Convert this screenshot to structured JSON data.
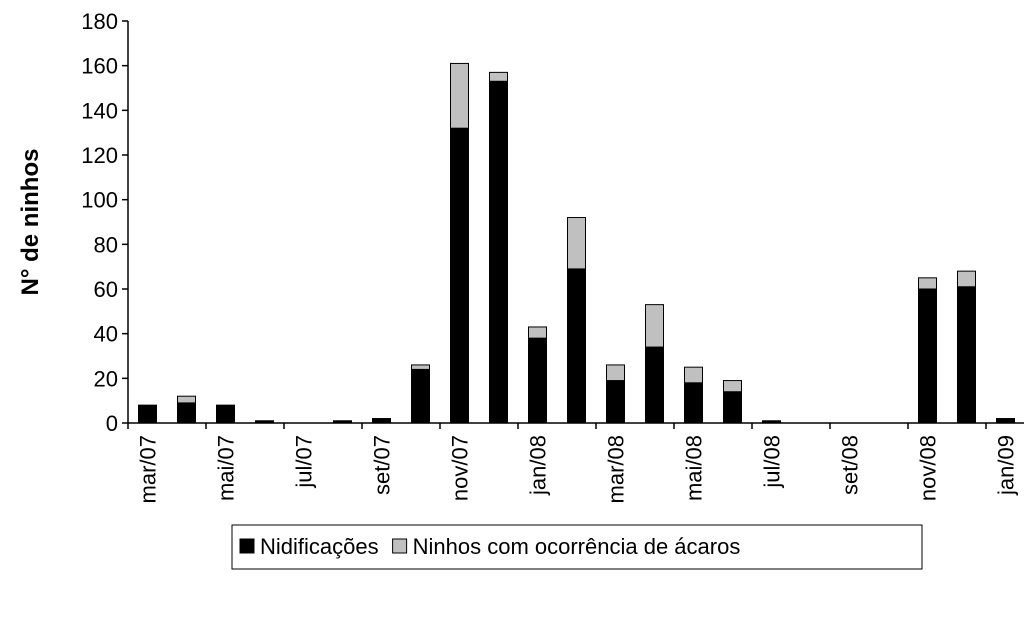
{
  "chart_data": {
    "type": "stacked_bar",
    "ylabel": "N° de ninhos",
    "categories": [
      "mar/07",
      null,
      "mai/07",
      null,
      "jul/07",
      null,
      "set/07",
      null,
      "nov/07",
      null,
      "jan/08",
      null,
      "mar/08",
      null,
      "mai/08",
      null,
      "jul/08",
      null,
      "set/08",
      null,
      "nov/08",
      null,
      "jan/09"
    ],
    "series": [
      {
        "name": "Nidificações",
        "color": "#000000",
        "values": [
          8,
          9,
          8,
          1,
          0,
          1,
          2,
          24,
          132,
          153,
          38,
          69,
          19,
          34,
          18,
          14,
          1,
          0,
          0,
          0,
          60,
          61,
          2
        ]
      },
      {
        "name": "Ninhos com ocorrência de ácaros",
        "color": "#c0c0c0",
        "values": [
          0,
          3,
          0,
          0,
          0,
          0,
          0,
          2,
          29,
          4,
          5,
          23,
          7,
          19,
          7,
          5,
          0,
          0,
          0,
          0,
          5,
          7,
          0
        ]
      }
    ],
    "ylim": [
      0,
      180
    ],
    "yticks": [
      0,
      20,
      40,
      60,
      80,
      100,
      120,
      140,
      160,
      180
    ],
    "grid": false,
    "legend": "bottom"
  }
}
